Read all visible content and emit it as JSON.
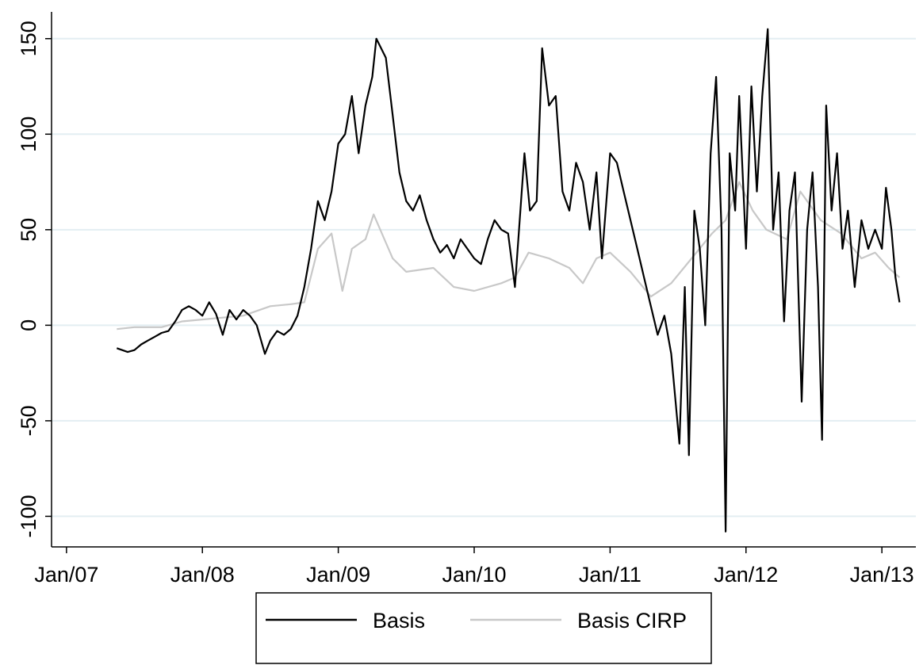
{
  "chart_data": {
    "type": "line",
    "xlim": [
      2006.89,
      2013.25
    ],
    "xticks": [
      {
        "value": 2007,
        "label": "Jan/07"
      },
      {
        "value": 2008,
        "label": "Jan/08"
      },
      {
        "value": 2009,
        "label": "Jan/09"
      },
      {
        "value": 2010,
        "label": "Jan/10"
      },
      {
        "value": 2011,
        "label": "Jan/11"
      },
      {
        "value": 2012,
        "label": "Jan/12"
      },
      {
        "value": 2013,
        "label": "Jan/13"
      }
    ],
    "ylim": [
      -116,
      164
    ],
    "yticks": [
      -100,
      -50,
      0,
      50,
      100,
      150
    ],
    "grid": true,
    "legend": "bottom",
    "series": [
      {
        "name": "Basis",
        "color": "#000000",
        "x": [
          2007.37,
          2007.45,
          2007.5,
          2007.55,
          2007.6,
          2007.65,
          2007.7,
          2007.75,
          2007.8,
          2007.85,
          2007.9,
          2007.95,
          2008.0,
          2008.05,
          2008.1,
          2008.15,
          2008.2,
          2008.25,
          2008.3,
          2008.35,
          2008.4,
          2008.46,
          2008.5,
          2008.55,
          2008.6,
          2008.65,
          2008.7,
          2008.75,
          2008.8,
          2008.85,
          2008.9,
          2008.95,
          2009.0,
          2009.05,
          2009.1,
          2009.15,
          2009.2,
          2009.25,
          2009.28,
          2009.35,
          2009.4,
          2009.45,
          2009.5,
          2009.55,
          2009.6,
          2009.65,
          2009.7,
          2009.75,
          2009.8,
          2009.85,
          2009.9,
          2009.95,
          2010.0,
          2010.05,
          2010.1,
          2010.15,
          2010.2,
          2010.25,
          2010.3,
          2010.37,
          2010.41,
          2010.46,
          2010.5,
          2010.55,
          2010.6,
          2010.65,
          2010.7,
          2010.75,
          2010.8,
          2010.85,
          2010.9,
          2010.94,
          2011.0,
          2011.05,
          2011.1,
          2011.15,
          2011.2,
          2011.25,
          2011.3,
          2011.35,
          2011.4,
          2011.45,
          2011.51,
          2011.55,
          2011.58,
          2011.62,
          2011.66,
          2011.7,
          2011.74,
          2011.78,
          2011.82,
          2011.85,
          2011.88,
          2011.92,
          2011.95,
          2012.0,
          2012.04,
          2012.08,
          2012.12,
          2012.16,
          2012.2,
          2012.24,
          2012.28,
          2012.32,
          2012.36,
          2012.41,
          2012.45,
          2012.49,
          2012.53,
          2012.56,
          2012.59,
          2012.63,
          2012.67,
          2012.71,
          2012.75,
          2012.8,
          2012.85,
          2012.9,
          2012.95,
          2013.0,
          2013.03,
          2013.07,
          2013.1,
          2013.13
        ],
        "values": [
          -12,
          -14,
          -13,
          -10,
          -8,
          -6,
          -4,
          -3,
          2,
          8,
          10,
          8,
          5,
          12,
          6,
          -5,
          8,
          3,
          8,
          5,
          0,
          -15,
          -8,
          -3,
          -5,
          -2,
          5,
          20,
          40,
          65,
          55,
          70,
          95,
          100,
          120,
          90,
          115,
          130,
          150,
          140,
          110,
          80,
          65,
          60,
          68,
          55,
          45,
          38,
          42,
          35,
          45,
          40,
          35,
          32,
          45,
          55,
          50,
          48,
          20,
          90,
          60,
          65,
          145,
          115,
          120,
          70,
          60,
          85,
          75,
          50,
          80,
          35,
          90,
          85,
          70,
          55,
          40,
          25,
          10,
          -5,
          5,
          -15,
          -62,
          20,
          -68,
          60,
          40,
          0,
          90,
          130,
          50,
          -108,
          90,
          60,
          120,
          40,
          125,
          70,
          120,
          155,
          50,
          80,
          2,
          60,
          80,
          -40,
          50,
          80,
          20,
          -60,
          115,
          60,
          90,
          40,
          60,
          20,
          55,
          40,
          50,
          40,
          72,
          50,
          25,
          12
        ]
      },
      {
        "name": "Basis CIRP",
        "color": "#c8c8c8",
        "x": [
          2007.37,
          2007.5,
          2007.7,
          2007.85,
          2008.0,
          2008.15,
          2008.3,
          2008.5,
          2008.65,
          2008.75,
          2008.85,
          2008.95,
          2009.03,
          2009.1,
          2009.2,
          2009.26,
          2009.4,
          2009.5,
          2009.7,
          2009.85,
          2010.0,
          2010.2,
          2010.3,
          2010.4,
          2010.55,
          2010.7,
          2010.8,
          2010.9,
          2011.0,
          2011.15,
          2011.3,
          2011.45,
          2011.6,
          2011.75,
          2011.85,
          2011.95,
          2012.05,
          2012.15,
          2012.3,
          2012.4,
          2012.55,
          2012.7,
          2012.85,
          2012.95,
          2013.05,
          2013.13
        ],
        "values": [
          -2,
          -1,
          -1,
          2,
          3,
          4,
          5,
          10,
          11,
          12,
          40,
          48,
          18,
          40,
          45,
          58,
          35,
          28,
          30,
          20,
          18,
          22,
          25,
          38,
          35,
          30,
          22,
          35,
          38,
          28,
          15,
          22,
          35,
          48,
          55,
          75,
          60,
          50,
          45,
          70,
          55,
          48,
          35,
          38,
          30,
          25
        ]
      }
    ]
  }
}
